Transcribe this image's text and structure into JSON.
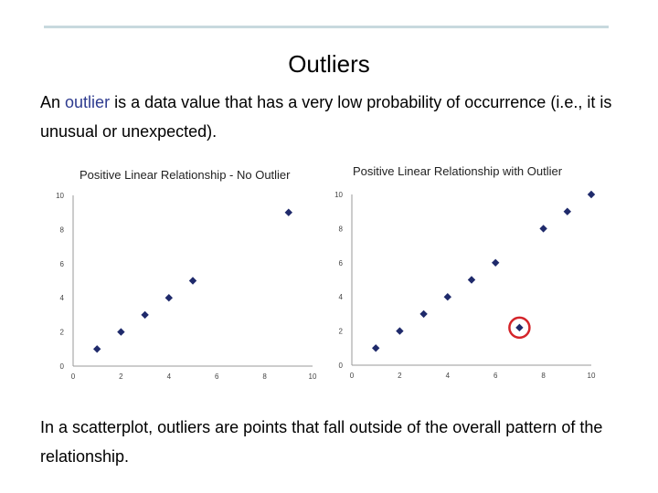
{
  "slide": {
    "title": "Outliers",
    "intro": {
      "before": "An ",
      "term": "outlier",
      "after": " is a data value that has a very low probability of occurrence (i.e., it is unusual or unexpected)."
    },
    "closing": "In a scatterplot, outliers are points that fall outside of the overall pattern of the relationship."
  },
  "colors": {
    "term": "#2e3b8f",
    "marker": "#1f2a6b",
    "highlight": "#d4242a"
  },
  "chart_data": [
    {
      "type": "scatter",
      "title": "Positive Linear Relationship - No Outlier",
      "xlabel": "",
      "ylabel": "",
      "xlim": [
        0,
        10
      ],
      "ylim": [
        0,
        10
      ],
      "x_ticks": [
        "0",
        "2",
        "4",
        "6",
        "8",
        "10"
      ],
      "x_tick_values": [
        0,
        2,
        4,
        6,
        8,
        10
      ],
      "y_ticks": [
        "0",
        "2",
        "4",
        "6",
        "8",
        "10"
      ],
      "y_tick_values": [
        0,
        2,
        4,
        6,
        8,
        10
      ],
      "grid": false,
      "legend": "none",
      "points": [
        {
          "x": 1,
          "y": 1
        },
        {
          "x": 2,
          "y": 2
        },
        {
          "x": 3,
          "y": 3
        },
        {
          "x": 4,
          "y": 4
        },
        {
          "x": 5,
          "y": 5
        },
        {
          "x": 9,
          "y": 9
        }
      ]
    },
    {
      "type": "scatter",
      "title": "Positive Linear Relationship with Outlier",
      "xlabel": "",
      "ylabel": "",
      "xlim": [
        0,
        10
      ],
      "ylim": [
        0,
        10
      ],
      "x_ticks": [
        "0",
        "2",
        "4",
        "6",
        "8",
        "10"
      ],
      "x_tick_values": [
        0,
        2,
        4,
        6,
        8,
        10
      ],
      "y_ticks": [
        "0",
        "2",
        "4",
        "6",
        "8",
        "10"
      ],
      "y_tick_values": [
        0,
        2,
        4,
        6,
        8,
        10
      ],
      "grid": false,
      "legend": "none",
      "points": [
        {
          "x": 1,
          "y": 1
        },
        {
          "x": 2,
          "y": 2
        },
        {
          "x": 3,
          "y": 3
        },
        {
          "x": 4,
          "y": 4
        },
        {
          "x": 5,
          "y": 5
        },
        {
          "x": 6,
          "y": 6
        },
        {
          "x": 7,
          "y": 2.2,
          "outlier": true
        },
        {
          "x": 8,
          "y": 8
        },
        {
          "x": 9,
          "y": 9
        },
        {
          "x": 10,
          "y": 10
        }
      ]
    }
  ]
}
